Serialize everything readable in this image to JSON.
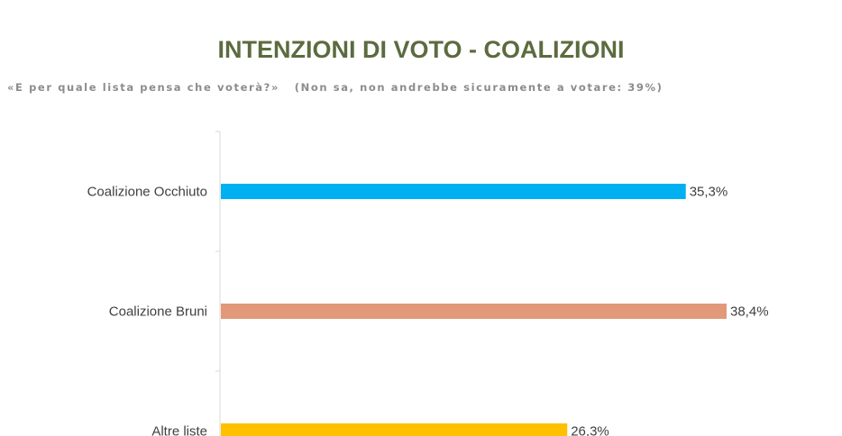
{
  "title": "INTENZIONI DI VOTO - COALIZIONI",
  "subtitle": "«E per quale lista pensa che voterà?»   (Non sa, non andrebbe sicuramente a votare: 39%)",
  "chart_data": {
    "type": "bar",
    "orientation": "horizontal",
    "categories": [
      "Coalizione Occhiuto",
      "Coalizione Bruni",
      "Altre liste"
    ],
    "values": [
      35.3,
      38.4,
      26.3
    ],
    "value_labels": [
      "35,3%",
      "38,4%",
      "26,3%"
    ],
    "colors": [
      "#00b0f0",
      "#e1997a",
      "#ffc000"
    ],
    "xlim": [
      0,
      38.4
    ],
    "grid": false,
    "legend": "none"
  }
}
